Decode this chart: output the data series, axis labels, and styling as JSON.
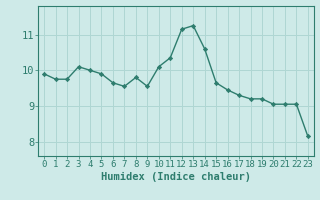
{
  "x": [
    0,
    1,
    2,
    3,
    4,
    5,
    6,
    7,
    8,
    9,
    10,
    11,
    12,
    13,
    14,
    15,
    16,
    17,
    18,
    19,
    20,
    21,
    22,
    23
  ],
  "y": [
    9.9,
    9.75,
    9.75,
    10.1,
    10.0,
    9.9,
    9.65,
    9.55,
    9.8,
    9.55,
    10.1,
    10.35,
    11.15,
    11.25,
    10.6,
    9.65,
    9.45,
    9.3,
    9.2,
    9.2,
    9.05,
    9.05,
    9.05,
    8.15
  ],
  "line_color": "#2e7d6e",
  "marker": "D",
  "marker_size": 2.2,
  "bg_color": "#ceeae8",
  "grid_color": "#afd6d3",
  "axis_color": "#2e7d6e",
  "xlabel": "Humidex (Indice chaleur)",
  "xlabel_fontsize": 7.5,
  "tick_fontsize": 6.5,
  "ytick_fontsize": 7.5,
  "ylim": [
    7.6,
    11.8
  ],
  "yticks": [
    8,
    9,
    10,
    11
  ],
  "xlim": [
    -0.5,
    23.5
  ]
}
